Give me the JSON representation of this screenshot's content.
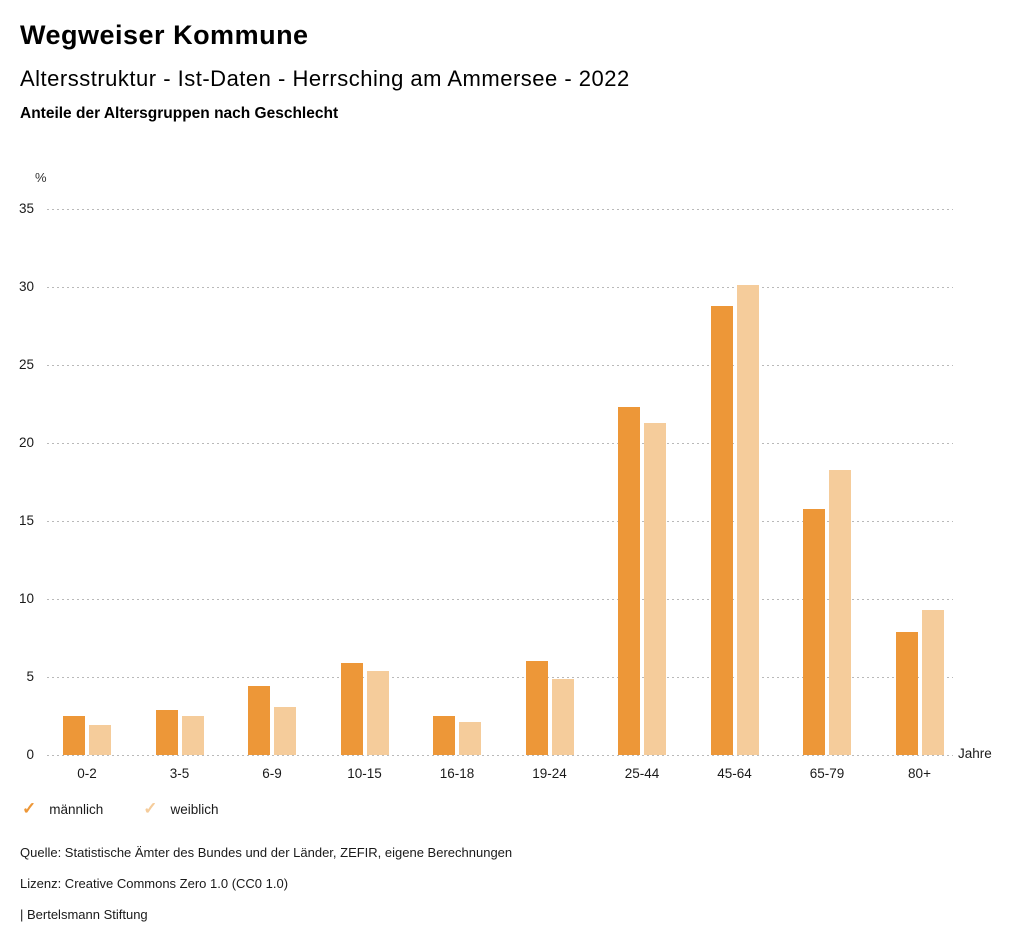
{
  "page": {
    "title": "Wegweiser Kommune",
    "subtitle": "Altersstruktur - Ist-Daten - Herrsching am Ammersee - 2022",
    "chart_heading": "Anteile der Altersgruppen nach Geschlecht"
  },
  "chart_data": {
    "type": "bar",
    "title": "Anteile der Altersgruppen nach Geschlecht",
    "categories": [
      "0-2",
      "3-5",
      "6-9",
      "10-15",
      "16-18",
      "19-24",
      "25-44",
      "45-64",
      "65-79",
      "80+"
    ],
    "series": [
      {
        "name": "männlich",
        "color": "#ED9738",
        "values": [
          2.5,
          2.9,
          4.4,
          5.9,
          2.5,
          6.0,
          22.3,
          28.8,
          15.8,
          7.9
        ]
      },
      {
        "name": "weiblich",
        "color": "#F5CC9B",
        "values": [
          1.9,
          2.5,
          3.1,
          5.4,
          2.1,
          4.9,
          21.3,
          30.1,
          18.3,
          9.3
        ]
      }
    ],
    "xlabel": "Jahre",
    "ylabel": "%",
    "ylim": [
      0,
      35
    ],
    "yticks": [
      0,
      5,
      10,
      15,
      20,
      25,
      30,
      35
    ],
    "grid": "horizontal-dotted",
    "legend_position": "bottom-left"
  },
  "legend": {
    "check_glyph": "✓"
  },
  "footer": {
    "source": "Quelle: Statistische Ämter des Bundes und der Länder, ZEFIR, eigene Berechnungen",
    "license": "Lizenz: Creative Commons Zero 1.0 (CC0 1.0)",
    "attribution": "| Bertelsmann Stiftung"
  }
}
